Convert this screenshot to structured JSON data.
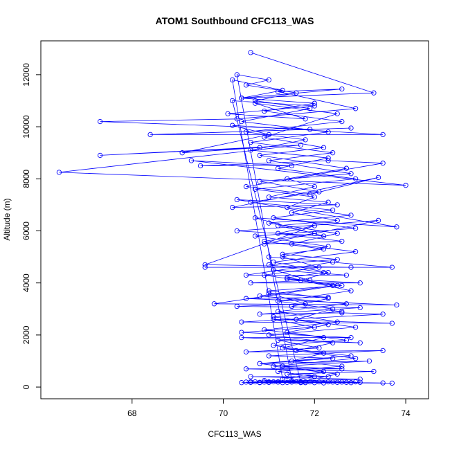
{
  "chart_data": {
    "type": "line",
    "title": "ATOM1 Southbound CFC113_WAS",
    "xlabel": "CFC113_WAS",
    "ylabel": "Altitude (m)",
    "xlim": [
      66.0,
      74.5
    ],
    "ylim": [
      -450,
      13300
    ],
    "x_ticks": [
      68,
      70,
      72,
      74
    ],
    "x_tick_labels": [
      "68",
      "70",
      "72",
      "74"
    ],
    "y_ticks": [
      0,
      2000,
      4000,
      6000,
      8000,
      10000,
      12000
    ],
    "y_tick_labels": [
      "0",
      "2000",
      "4000",
      "6000",
      "8000",
      "10000",
      "12000"
    ],
    "grid": false,
    "markers": "open-circle",
    "series": [
      {
        "color": "#0000ff",
        "points": [
          [
            70.6,
            12850
          ],
          [
            73.3,
            11300
          ],
          [
            70.4,
            11100
          ],
          [
            72.6,
            11450
          ],
          [
            71.2,
            11350
          ],
          [
            72.9,
            10700
          ],
          [
            70.3,
            10300
          ],
          [
            67.3,
            10200
          ],
          [
            71.9,
            9900
          ],
          [
            72.8,
            9950
          ],
          [
            68.4,
            9700
          ],
          [
            73.5,
            9700
          ],
          [
            70.2,
            10050
          ],
          [
            71.0,
            9700
          ],
          [
            69.1,
            9000
          ],
          [
            70.8,
            9200
          ],
          [
            67.3,
            8900
          ],
          [
            71.7,
            9300
          ],
          [
            66.4,
            8250
          ],
          [
            74.0,
            7750
          ],
          [
            69.3,
            8700
          ],
          [
            71.5,
            8500
          ],
          [
            69.5,
            8500
          ],
          [
            72.3,
            8700
          ],
          [
            73.5,
            8600
          ],
          [
            70.5,
            7700
          ],
          [
            71.9,
            7400
          ],
          [
            73.4,
            8050
          ],
          [
            70.2,
            6900
          ],
          [
            72.5,
            7000
          ],
          [
            70.3,
            7200
          ],
          [
            73.8,
            6150
          ],
          [
            70.7,
            6500
          ],
          [
            72.2,
            5800
          ],
          [
            70.3,
            6000
          ],
          [
            73.4,
            6400
          ],
          [
            70.9,
            5500
          ],
          [
            72.6,
            5600
          ],
          [
            71.2,
            5900
          ],
          [
            72.0,
            6200
          ],
          [
            69.6,
            4700
          ],
          [
            72.8,
            4600
          ],
          [
            69.6,
            4600
          ],
          [
            73.7,
            4600
          ],
          [
            71.0,
            5000
          ],
          [
            72.4,
            4800
          ],
          [
            70.5,
            4300
          ],
          [
            72.7,
            4300
          ],
          [
            71.1,
            4500
          ],
          [
            71.9,
            4100
          ],
          [
            70.6,
            4000
          ],
          [
            73.0,
            4000
          ],
          [
            71.4,
            4150
          ],
          [
            72.5,
            3900
          ],
          [
            69.8,
            3200
          ],
          [
            73.8,
            3150
          ],
          [
            70.5,
            3400
          ],
          [
            72.3,
            3450
          ],
          [
            71.0,
            3600
          ],
          [
            71.8,
            3200
          ],
          [
            70.3,
            3100
          ],
          [
            73.0,
            3050
          ],
          [
            70.8,
            2800
          ],
          [
            72.6,
            2850
          ],
          [
            73.5,
            2800
          ],
          [
            70.4,
            2500
          ],
          [
            73.7,
            2450
          ],
          [
            71.1,
            2600
          ],
          [
            72.0,
            2300
          ],
          [
            70.4,
            2100
          ],
          [
            72.8,
            1900
          ],
          [
            70.4,
            1900
          ],
          [
            73.0,
            1700
          ],
          [
            71.2,
            1800
          ],
          [
            72.1,
            1500
          ],
          [
            70.5,
            1350
          ],
          [
            73.5,
            1400
          ],
          [
            71.0,
            1200
          ],
          [
            72.4,
            1100
          ],
          [
            70.8,
            900
          ],
          [
            73.2,
            1000
          ],
          [
            71.3,
            800
          ],
          [
            72.6,
            700
          ],
          [
            70.5,
            700
          ],
          [
            73.3,
            600
          ],
          [
            71.4,
            500
          ],
          [
            72.3,
            400
          ],
          [
            70.6,
            400
          ],
          [
            73.0,
            300
          ],
          [
            70.6,
            200
          ],
          [
            73.7,
            150
          ],
          [
            71.0,
            180
          ],
          [
            72.9,
            200
          ],
          [
            70.9,
            250
          ],
          [
            71.8,
            200
          ],
          [
            70.8,
            170
          ],
          [
            73.5,
            160
          ],
          [
            71.5,
            190
          ],
          [
            72.5,
            180
          ],
          [
            71.2,
            200
          ],
          [
            72.0,
            170
          ],
          [
            70.7,
            200
          ],
          [
            71.7,
            190
          ],
          [
            72.2,
            160
          ],
          [
            71.0,
            200
          ],
          [
            70.5,
            190
          ],
          [
            71.9,
            200
          ],
          [
            72.7,
            180
          ],
          [
            71.3,
            170
          ],
          [
            71.6,
            200
          ],
          [
            70.8,
            180
          ],
          [
            72.4,
            190
          ],
          [
            71.1,
            200
          ],
          [
            72.8,
            170
          ],
          [
            70.9,
            190
          ],
          [
            71.4,
            180
          ],
          [
            72.1,
            200
          ],
          [
            71.8,
            170
          ],
          [
            70.6,
            180
          ],
          [
            72.6,
            190
          ],
          [
            71.5,
            200
          ],
          [
            70.4,
            170
          ],
          [
            73.0,
            180
          ],
          [
            71.2,
            190
          ],
          [
            72.3,
            200
          ],
          [
            71.7,
            170
          ],
          [
            70.2,
            11000
          ],
          [
            72.0,
            10800
          ],
          [
            70.1,
            10500
          ],
          [
            71.8,
            10300
          ],
          [
            70.7,
            10900
          ],
          [
            72.5,
            10500
          ],
          [
            70.9,
            9600
          ],
          [
            72.2,
            9200
          ],
          [
            70.8,
            8900
          ],
          [
            72.7,
            8400
          ],
          [
            71.4,
            8000
          ],
          [
            72.0,
            7700
          ],
          [
            71.0,
            7300
          ],
          [
            72.3,
            7100
          ],
          [
            71.5,
            6700
          ],
          [
            72.5,
            6400
          ],
          [
            71.2,
            6200
          ],
          [
            72.0,
            5900
          ],
          [
            70.9,
            5600
          ],
          [
            72.2,
            5300
          ],
          [
            71.3,
            5100
          ],
          [
            72.5,
            4900
          ],
          [
            71.0,
            4700
          ],
          [
            72.2,
            4400
          ],
          [
            71.4,
            4200
          ],
          [
            72.6,
            3900
          ],
          [
            71.0,
            3700
          ],
          [
            72.3,
            3400
          ],
          [
            71.5,
            3100
          ],
          [
            72.6,
            2900
          ],
          [
            71.1,
            2700
          ],
          [
            72.3,
            2400
          ],
          [
            71.4,
            2100
          ],
          [
            72.7,
            1800
          ],
          [
            71.1,
            1600
          ],
          [
            72.2,
            1300
          ],
          [
            71.5,
            1000
          ],
          [
            72.6,
            800
          ],
          [
            71.2,
            600
          ],
          [
            72.0,
            400
          ],
          [
            71.5,
            250
          ],
          [
            70.3,
            12000
          ],
          [
            71.0,
            11800
          ],
          [
            70.5,
            11600
          ],
          [
            71.6,
            11300
          ],
          [
            70.7,
            11000
          ],
          [
            71.9,
            10700
          ],
          [
            70.4,
            10200
          ],
          [
            72.3,
            9800
          ],
          [
            70.6,
            9400
          ],
          [
            72.4,
            9000
          ],
          [
            71.0,
            8700
          ],
          [
            72.8,
            8200
          ],
          [
            70.8,
            7900
          ],
          [
            72.1,
            7500
          ],
          [
            70.6,
            7100
          ],
          [
            72.4,
            6800
          ],
          [
            71.1,
            6500
          ],
          [
            72.9,
            6100
          ],
          [
            70.7,
            5800
          ],
          [
            72.3,
            5400
          ],
          [
            71.3,
            5000
          ],
          [
            72.1,
            4600
          ],
          [
            70.9,
            4300
          ],
          [
            72.4,
            3900
          ],
          [
            70.8,
            3500
          ],
          [
            72.7,
            3200
          ],
          [
            71.2,
            2900
          ],
          [
            72.5,
            2500
          ],
          [
            70.9,
            2200
          ],
          [
            72.2,
            1900
          ],
          [
            71.3,
            1500
          ],
          [
            72.8,
            1200
          ],
          [
            70.8,
            900
          ],
          [
            72.2,
            600
          ],
          [
            71.3,
            300
          ],
          [
            70.2,
            11800
          ],
          [
            71.3,
            11400
          ],
          [
            70.4,
            11100
          ],
          [
            72.0,
            10900
          ],
          [
            70.9,
            10600
          ],
          [
            72.6,
            10200
          ],
          [
            70.5,
            9800
          ],
          [
            71.8,
            9500
          ],
          [
            70.6,
            9100
          ],
          [
            72.3,
            8800
          ],
          [
            71.2,
            8400
          ],
          [
            72.9,
            8000
          ],
          [
            70.7,
            7600
          ],
          [
            72.0,
            7300
          ],
          [
            71.4,
            6900
          ],
          [
            72.8,
            6600
          ],
          [
            71.0,
            6300
          ],
          [
            72.5,
            5900
          ],
          [
            71.5,
            5500
          ],
          [
            72.9,
            5200
          ],
          [
            71.1,
            4800
          ],
          [
            72.3,
            4400
          ],
          [
            71.7,
            4100
          ],
          [
            72.8,
            3700
          ],
          [
            71.2,
            3300
          ],
          [
            72.4,
            3000
          ],
          [
            71.6,
            2600
          ],
          [
            72.9,
            2300
          ],
          [
            71.0,
            2000
          ],
          [
            72.4,
            1700
          ],
          [
            71.6,
            1400
          ],
          [
            72.9,
            1100
          ],
          [
            71.1,
            800
          ],
          [
            72.5,
            500
          ],
          [
            71.7,
            200
          ]
        ]
      }
    ]
  }
}
